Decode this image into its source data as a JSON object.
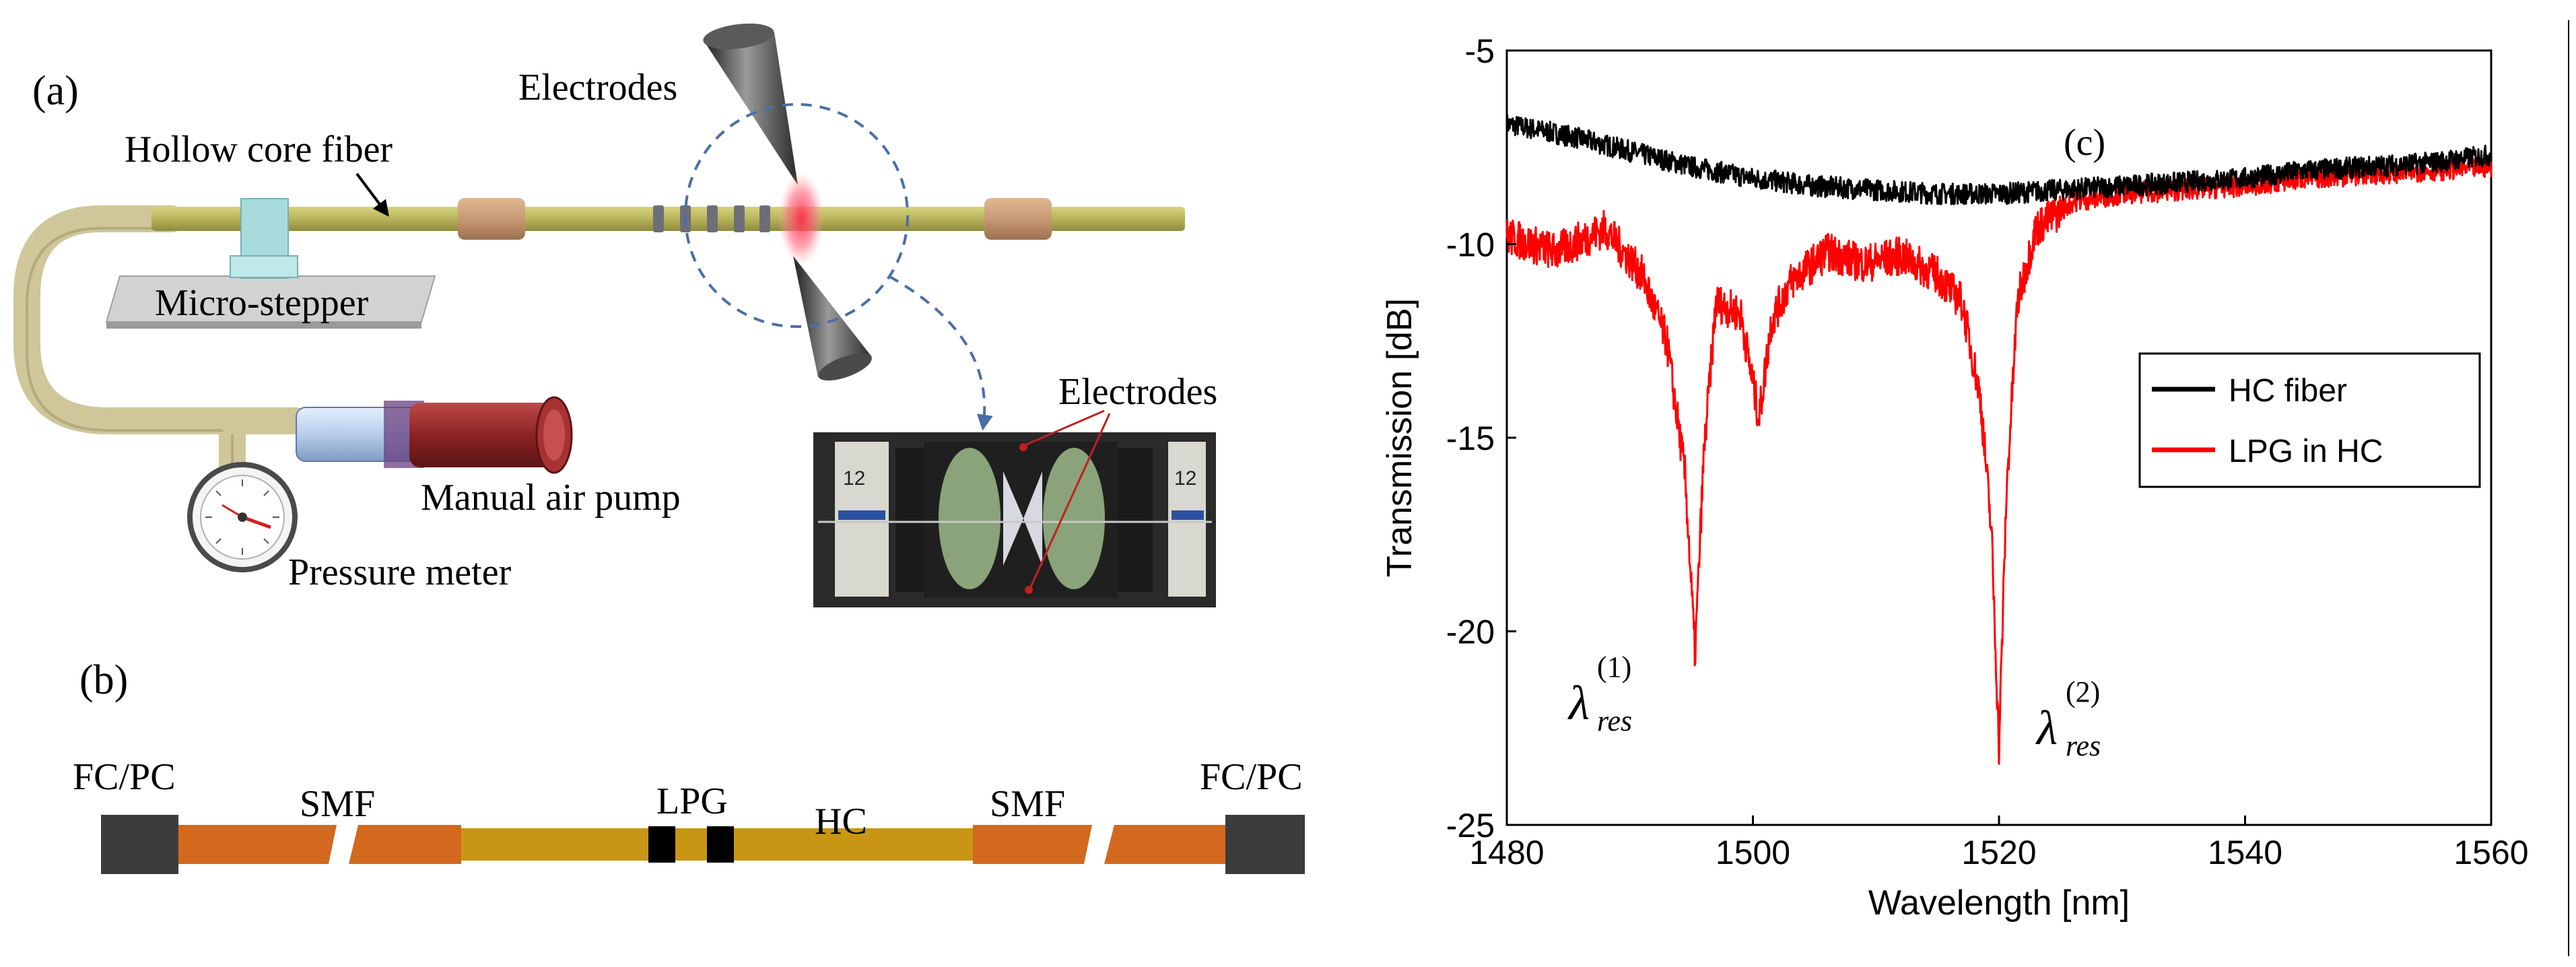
{
  "panel_a": {
    "label": "(a)",
    "hollow_core_fiber": "Hollow core fiber",
    "electrodes_top": "Electrodes",
    "micro_stepper": "Micro-stepper",
    "manual_air_pump": "Manual air pump",
    "pressure_meter": "Pressure meter",
    "electrodes_photo": "Electrodes"
  },
  "panel_b": {
    "label": "(b)",
    "fcpc_left": "FC/PC",
    "smf_left": "SMF",
    "lpg": "LPG",
    "hc": "HC",
    "smf_right": "SMF",
    "fcpc_right": "FC/PC"
  },
  "panel_c": {
    "label": "(c)",
    "res1_symbol": "λ",
    "res1_sup": "(1)",
    "res1_sub": "res",
    "res2_symbol": "λ",
    "res2_sup": "(2)",
    "res2_sub": "res"
  },
  "colors": {
    "fiber": "#b8b45a",
    "fiber_dark": "#8a8640",
    "sleeve": "#c89a74",
    "tube": "#cfc79a",
    "smf": "#d2691e",
    "hc": "#c89614",
    "connector": "#3c3c3c",
    "hc_curve": "#000000",
    "lpg_curve": "#ff0000",
    "pump_red": "#8b2323",
    "stepper": "#a8dcdc"
  },
  "chart_data": {
    "type": "line",
    "title": "",
    "xlabel": "Wavelength [nm]",
    "ylabel": "Transmission [dB]",
    "xlim": [
      1480,
      1560
    ],
    "ylim": [
      -25,
      -5
    ],
    "xticks": [
      1480,
      1500,
      1520,
      1540,
      1560
    ],
    "yticks": [
      -5,
      -10,
      -15,
      -20,
      -25
    ],
    "grid": false,
    "legend_position": "right",
    "series": [
      {
        "name": "HC fiber",
        "color": "#000000",
        "x": [
          1480,
          1485,
          1490,
          1495,
          1500,
          1505,
          1510,
          1515,
          1520,
          1525,
          1530,
          1535,
          1540,
          1545,
          1550,
          1555,
          1560
        ],
        "y": [
          -6.9,
          -7.2,
          -7.6,
          -8.0,
          -8.3,
          -8.5,
          -8.6,
          -8.7,
          -8.7,
          -8.6,
          -8.5,
          -8.4,
          -8.3,
          -8.1,
          -8.0,
          -7.9,
          -7.7
        ]
      },
      {
        "name": "LPG in HC",
        "color": "#ff0000",
        "x": [
          1480,
          1484,
          1488,
          1491,
          1493,
          1494.5,
          1495.3,
          1496,
          1497,
          1499,
          1500.5,
          1501.5,
          1503,
          1506,
          1509,
          1512,
          1515,
          1517,
          1518.5,
          1519.4,
          1520,
          1520.6,
          1521.5,
          1523,
          1526,
          1530,
          1535,
          1540,
          1545,
          1550,
          1555,
          1560
        ],
        "y": [
          -9.8,
          -10.2,
          -9.6,
          -10.8,
          -12.5,
          -16.0,
          -20.6,
          -15.5,
          -11.5,
          -11.8,
          -14.5,
          -12.0,
          -11.0,
          -10.2,
          -10.5,
          -10.3,
          -10.8,
          -11.5,
          -14.0,
          -17.5,
          -23.0,
          -16.5,
          -11.5,
          -9.6,
          -8.9,
          -8.7,
          -8.6,
          -8.5,
          -8.3,
          -8.2,
          -8.1,
          -8.0
        ]
      }
    ]
  }
}
